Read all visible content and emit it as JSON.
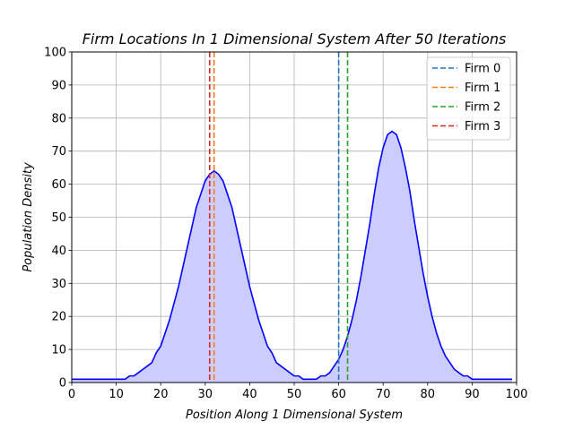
{
  "chart_data": {
    "type": "line",
    "title": "Firm Locations In 1 Dimensional System After 50 Iterations",
    "xlabel": "Position Along 1 Dimensional System",
    "ylabel": "Population Density",
    "xlim": [
      0,
      100
    ],
    "ylim": [
      0,
      100
    ],
    "xticks": [
      "0",
      "10",
      "20",
      "30",
      "40",
      "50",
      "60",
      "70",
      "80",
      "90",
      "100"
    ],
    "yticks": [
      "0",
      "10",
      "20",
      "30",
      "40",
      "50",
      "60",
      "70",
      "80",
      "90",
      "100"
    ],
    "grid": true,
    "legend_position": "top-right",
    "density": {
      "color": "#0000ff",
      "fill_color": "#ccccff",
      "x": [
        0,
        1,
        2,
        3,
        4,
        5,
        6,
        7,
        8,
        9,
        10,
        11,
        12,
        13,
        14,
        15,
        16,
        17,
        18,
        19,
        20,
        21,
        22,
        23,
        24,
        25,
        26,
        27,
        28,
        29,
        30,
        31,
        32,
        33,
        34,
        35,
        36,
        37,
        38,
        39,
        40,
        41,
        42,
        43,
        44,
        45,
        46,
        47,
        48,
        49,
        50,
        51,
        52,
        53,
        54,
        55,
        56,
        57,
        58,
        59,
        60,
        61,
        62,
        63,
        64,
        65,
        66,
        67,
        68,
        69,
        70,
        71,
        72,
        73,
        74,
        75,
        76,
        77,
        78,
        79,
        80,
        81,
        82,
        83,
        84,
        85,
        86,
        87,
        88,
        89,
        90,
        91,
        92,
        93,
        94,
        95,
        96,
        97,
        98,
        99
      ],
      "y": [
        1,
        1,
        1,
        1,
        1,
        1,
        1,
        1,
        1,
        1,
        1,
        1,
        1,
        2,
        2,
        3,
        4,
        5,
        6,
        9,
        11,
        15,
        19,
        24,
        29,
        35,
        41,
        47,
        53,
        57,
        61,
        63,
        64,
        63,
        61,
        57,
        53,
        47,
        41,
        35,
        29,
        24,
        19,
        15,
        11,
        9,
        6,
        5,
        4,
        3,
        2,
        2,
        1,
        1,
        1,
        1,
        2,
        2,
        3,
        5,
        7,
        10,
        14,
        19,
        25,
        32,
        40,
        48,
        57,
        65,
        71,
        75,
        76,
        75,
        71,
        65,
        58,
        49,
        41,
        33,
        26,
        20,
        15,
        11,
        8,
        6,
        4,
        3,
        2,
        2,
        1,
        1,
        1,
        1,
        1,
        1,
        1,
        1,
        1,
        1
      ]
    },
    "series": [
      {
        "name": "Firm 0",
        "x": 60,
        "color": "#1f77b4"
      },
      {
        "name": "Firm 1",
        "x": 32,
        "color": "#ff7f0e"
      },
      {
        "name": "Firm 2",
        "x": 62,
        "color": "#2ca02c"
      },
      {
        "name": "Firm 3",
        "x": 31,
        "color": "#d62728"
      }
    ]
  }
}
